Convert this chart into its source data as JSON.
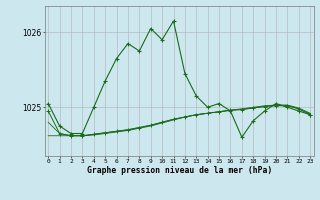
{
  "title": "Graphe pression niveau de la mer (hPa)",
  "background_color": "#cce8ee",
  "plot_bg_color": "#cce8ee",
  "grid_color": "#b0b0b0",
  "line_color": "#1a6b1a",
  "x_ticks": [
    0,
    1,
    2,
    3,
    4,
    5,
    6,
    7,
    8,
    9,
    10,
    11,
    12,
    13,
    14,
    15,
    16,
    17,
    18,
    19,
    20,
    21,
    22,
    23
  ],
  "y_ticks": [
    1025,
    1026
  ],
  "ylim": [
    1024.35,
    1026.35
  ],
  "xlim": [
    -0.3,
    23.3
  ],
  "line1_x": [
    0,
    1,
    2,
    3,
    4,
    5,
    6,
    7,
    8,
    9,
    10,
    11,
    12,
    13,
    14,
    15,
    16,
    17,
    18,
    19,
    20,
    21,
    22,
    23
  ],
  "line1_y": [
    1025.05,
    1024.75,
    1024.65,
    1024.65,
    1025.0,
    1025.35,
    1025.65,
    1025.85,
    1025.75,
    1026.05,
    1025.9,
    1026.15,
    1025.45,
    1025.15,
    1025.0,
    1025.05,
    1024.95,
    1024.6,
    1024.82,
    1024.95,
    1025.05,
    1025.0,
    1024.95,
    1024.9
  ],
  "line2_x": [
    0,
    1,
    2,
    3,
    4,
    5,
    6,
    7,
    8,
    9,
    10,
    11,
    12,
    13,
    14,
    15,
    16,
    17,
    18,
    19,
    20,
    21,
    22,
    23
  ],
  "line2_y": [
    1024.95,
    1024.65,
    1024.62,
    1024.62,
    1024.64,
    1024.66,
    1024.68,
    1024.7,
    1024.73,
    1024.76,
    1024.8,
    1024.84,
    1024.87,
    1024.9,
    1024.92,
    1024.94,
    1024.96,
    1024.97,
    1024.99,
    1025.01,
    1025.02,
    1025.02,
    1024.98,
    1024.9
  ],
  "line3_x": [
    0,
    1,
    2,
    3,
    4,
    5,
    6,
    7,
    8,
    9,
    10,
    11,
    12,
    13,
    14,
    15,
    16,
    17,
    18,
    19,
    20,
    21,
    22,
    23
  ],
  "line3_y": [
    1024.62,
    1024.62,
    1024.62,
    1024.62,
    1024.63,
    1024.65,
    1024.67,
    1024.69,
    1024.72,
    1024.75,
    1024.79,
    1024.83,
    1024.87,
    1024.9,
    1024.92,
    1024.94,
    1024.96,
    1024.98,
    1025.0,
    1025.02,
    1025.03,
    1025.03,
    1024.99,
    1024.92
  ],
  "line4_x": [
    0,
    1,
    2,
    3,
    4,
    5,
    6,
    7,
    8,
    9,
    10,
    11,
    12,
    13,
    14,
    15,
    16,
    17,
    18,
    19,
    20,
    21,
    22,
    23
  ],
  "line4_y": [
    1024.8,
    1024.65,
    1024.62,
    1024.62,
    1024.64,
    1024.66,
    1024.68,
    1024.7,
    1024.73,
    1024.76,
    1024.8,
    1024.84,
    1024.87,
    1024.9,
    1024.92,
    1024.94,
    1024.96,
    1024.97,
    1024.99,
    1025.01,
    1025.03,
    1025.02,
    1024.98,
    1024.91
  ]
}
